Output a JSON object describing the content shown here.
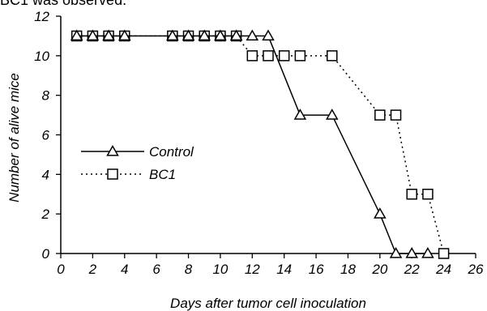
{
  "caption_fragment": "BC1 was observed.",
  "chart_data": {
    "type": "line",
    "xlabel": "Days after tumor cell inoculation",
    "ylabel": "Number of alive mice",
    "xlim": [
      0,
      26
    ],
    "ylim": [
      0,
      12
    ],
    "xticks": [
      0,
      2,
      4,
      6,
      8,
      10,
      12,
      14,
      16,
      18,
      20,
      22,
      24,
      26
    ],
    "yticks": [
      0,
      2,
      4,
      6,
      8,
      10,
      12
    ],
    "grid": false,
    "legend_position": "left-middle",
    "series": [
      {
        "name": "Control",
        "marker": "triangle",
        "line_style": "solid",
        "color": "#000000",
        "points": [
          [
            1,
            11
          ],
          [
            2,
            11
          ],
          [
            3,
            11
          ],
          [
            4,
            11
          ],
          [
            7,
            11
          ],
          [
            8,
            11
          ],
          [
            9,
            11
          ],
          [
            10,
            11
          ],
          [
            11,
            11
          ],
          [
            12,
            11
          ],
          [
            13,
            11
          ],
          [
            15,
            7
          ],
          [
            17,
            7
          ],
          [
            20,
            2
          ],
          [
            21,
            0
          ],
          [
            22,
            0
          ],
          [
            23,
            0
          ]
        ]
      },
      {
        "name": "BC1",
        "marker": "square",
        "line_style": "dotted",
        "color": "#000000",
        "points": [
          [
            1,
            11
          ],
          [
            2,
            11
          ],
          [
            3,
            11
          ],
          [
            4,
            11
          ],
          [
            7,
            11
          ],
          [
            8,
            11
          ],
          [
            9,
            11
          ],
          [
            10,
            11
          ],
          [
            11,
            11
          ],
          [
            12,
            10
          ],
          [
            13,
            10
          ],
          [
            14,
            10
          ],
          [
            15,
            10
          ],
          [
            17,
            10
          ],
          [
            20,
            7
          ],
          [
            21,
            7
          ],
          [
            22,
            3
          ],
          [
            23,
            3
          ],
          [
            24,
            0
          ]
        ]
      }
    ]
  }
}
